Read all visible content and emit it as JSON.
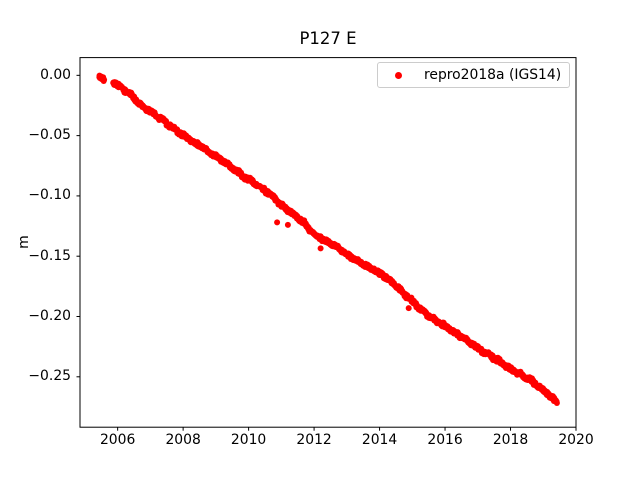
{
  "colors": {
    "marker": "#ff0000",
    "axes": "#000000",
    "background": "#ffffff",
    "legend_border": "#cccccc"
  },
  "chart_data": {
    "type": "scatter",
    "title": "P127 E",
    "xlabel": "",
    "ylabel": "m",
    "xlim": [
      2004.85,
      2020.0
    ],
    "ylim": [
      -0.2918,
      0.0147
    ],
    "xticks": [
      2006,
      2008,
      2010,
      2012,
      2014,
      2016,
      2018,
      2020
    ],
    "yticks": [
      0,
      -0.05,
      -0.1,
      -0.15,
      -0.2,
      -0.25
    ],
    "ytick_labels": [
      "0.00",
      "−0.05",
      "−0.10",
      "−0.15",
      "−0.20",
      "−0.25"
    ],
    "grid": false,
    "legend": {
      "location": "upper right",
      "entries": [
        {
          "label": "repro2018a (IGS14)",
          "color": "#ff0000",
          "marker": "point"
        }
      ]
    },
    "series": [
      {
        "name": "repro2018a (IGS14)",
        "color": "#ff0000",
        "marker": "point",
        "marker_radius_px": 3,
        "t_start": 2005.44,
        "t_end": 2019.42,
        "sample_step_years": 0.01,
        "noise_std_m": 0.001,
        "trend_rate_m_per_yr": -0.0195,
        "data_gaps": [
          [
            2005.58,
            2005.86
          ]
        ],
        "trend_anchors": [
          [
            2005.44,
            -0.0005
          ],
          [
            2005.58,
            -0.003
          ],
          [
            2005.9,
            -0.006
          ],
          [
            2006.1,
            -0.01
          ],
          [
            2006.4,
            -0.016
          ],
          [
            2006.7,
            -0.0245
          ],
          [
            2007.0,
            -0.03
          ],
          [
            2007.3,
            -0.0355
          ],
          [
            2007.7,
            -0.044
          ],
          [
            2008.0,
            -0.05
          ],
          [
            2008.4,
            -0.0565
          ],
          [
            2008.8,
            -0.064
          ],
          [
            2009.2,
            -0.0705
          ],
          [
            2009.6,
            -0.079
          ],
          [
            2010.0,
            -0.0865
          ],
          [
            2010.35,
            -0.0925
          ],
          [
            2010.7,
            -0.099
          ],
          [
            2011.0,
            -0.1075
          ],
          [
            2011.4,
            -0.116
          ],
          [
            2011.7,
            -0.1225
          ],
          [
            2012.0,
            -0.1315
          ],
          [
            2012.3,
            -0.1365
          ],
          [
            2012.7,
            -0.1425
          ],
          [
            2013.0,
            -0.1485
          ],
          [
            2013.4,
            -0.155
          ],
          [
            2013.8,
            -0.161
          ],
          [
            2014.2,
            -0.1675
          ],
          [
            2014.6,
            -0.177
          ],
          [
            2015.0,
            -0.1875
          ],
          [
            2015.4,
            -0.1975
          ],
          [
            2015.8,
            -0.2045
          ],
          [
            2016.2,
            -0.2115
          ],
          [
            2016.6,
            -0.2185
          ],
          [
            2017.0,
            -0.2265
          ],
          [
            2017.4,
            -0.2325
          ],
          [
            2017.8,
            -0.24
          ],
          [
            2018.2,
            -0.2465
          ],
          [
            2018.6,
            -0.2525
          ],
          [
            2019.0,
            -0.2615
          ],
          [
            2019.2,
            -0.2655
          ],
          [
            2019.35,
            -0.2695
          ],
          [
            2019.42,
            -0.272
          ]
        ],
        "outliers": [
          [
            2010.87,
            -0.122
          ],
          [
            2011.2,
            -0.124
          ],
          [
            2012.2,
            -0.1435
          ],
          [
            2014.89,
            -0.193
          ]
        ]
      }
    ]
  }
}
